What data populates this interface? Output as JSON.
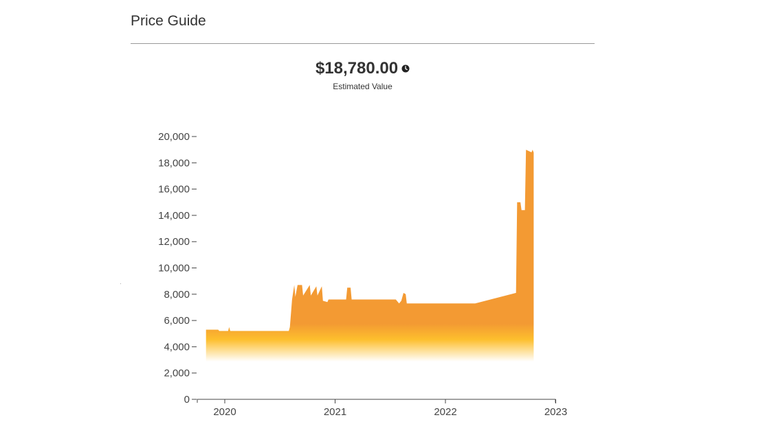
{
  "header": {
    "title": "Price Guide"
  },
  "estimate": {
    "value": "$18,780.00",
    "label": "Estimated Value",
    "icon": "clock-icon"
  },
  "colors": {
    "area_top": "#f39a33",
    "area_gradient_mid": "#fdbf2d",
    "area_gradient_bottom": "#ffffff",
    "axis": "#444444"
  },
  "chart_data": {
    "type": "area",
    "title": "Price Guide",
    "xlabel": "",
    "ylabel": "",
    "ylim": [
      0,
      20000
    ],
    "y_ticks": [
      0,
      2000,
      4000,
      6000,
      8000,
      10000,
      12000,
      14000,
      16000,
      18000,
      20000
    ],
    "y_tick_labels": [
      "0",
      "2,000",
      "4,000",
      "6,000",
      "8,000",
      "10,000",
      "12,000",
      "14,000",
      "16,000",
      "18,000",
      "20,000"
    ],
    "x_ticks": [
      2020,
      2021,
      2022,
      2023
    ],
    "x_tick_labels": [
      "2020",
      "2021",
      "2022",
      "2023"
    ],
    "grid": false,
    "legend": null,
    "series": [
      {
        "name": "Estimated Value",
        "x": [
          2019.83,
          2019.94,
          2019.95,
          2020.03,
          2020.04,
          2020.05,
          2020.58,
          2020.59,
          2020.61,
          2020.63,
          2020.64,
          2020.66,
          2020.7,
          2020.71,
          2020.77,
          2020.78,
          2020.83,
          2020.84,
          2020.88,
          2020.89,
          2020.93,
          2020.94,
          2021.1,
          2021.11,
          2021.14,
          2021.15,
          2021.55,
          2021.58,
          2021.6,
          2021.62,
          2021.64,
          2021.65,
          2022.27,
          2022.64,
          2022.65,
          2022.68,
          2022.69,
          2022.72,
          2022.73,
          2022.78,
          2022.79,
          2022.8
        ],
        "values": [
          5300,
          5300,
          5200,
          5200,
          5500,
          5200,
          5200,
          5500,
          7600,
          8700,
          7800,
          8700,
          8700,
          7900,
          8700,
          7900,
          8600,
          7900,
          8600,
          7500,
          7400,
          7600,
          7600,
          8500,
          8500,
          7600,
          7600,
          7300,
          7500,
          8100,
          8000,
          7300,
          7300,
          8100,
          15000,
          15000,
          14400,
          14400,
          19000,
          18800,
          19000,
          18780
        ]
      }
    ]
  }
}
